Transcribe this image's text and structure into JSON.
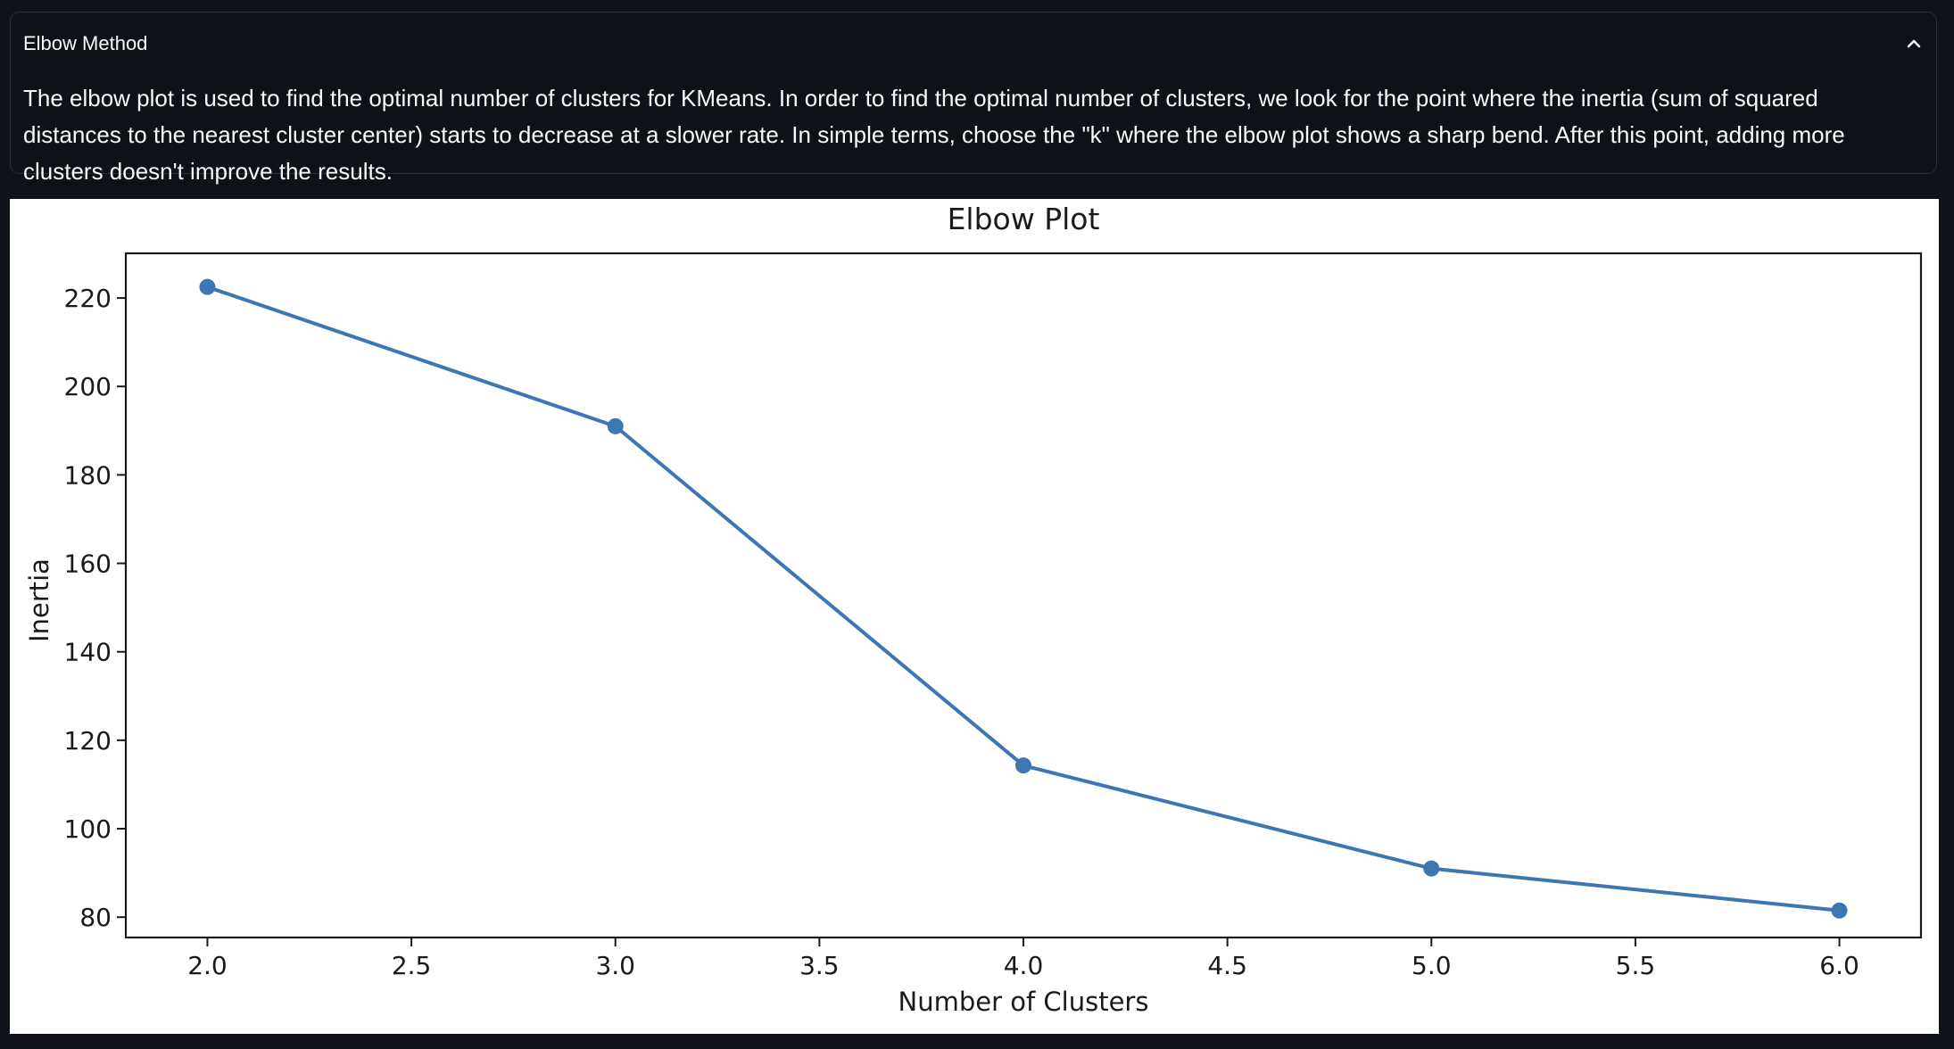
{
  "expander": {
    "title": "Elbow Method",
    "chevron_icon": "chevron-up-icon",
    "body": "The elbow plot is used to find the optimal number of clusters for KMeans. In order to find the optimal number of clusters, we look for the point where the inertia (sum of squared distances to the nearest cluster center) starts to decrease at a slower rate. In simple terms, choose the \"k\" where the elbow plot shows a sharp bend. After this point, adding more clusters doesn't improve the results."
  },
  "chart_data": {
    "type": "line",
    "title": "Elbow Plot",
    "xlabel": "Number of Clusters",
    "ylabel": "Inertia",
    "x": [
      2,
      3,
      4,
      5,
      6
    ],
    "values": [
      222.5,
      191,
      114.3,
      91,
      81.5
    ],
    "xticks": [
      "2.0",
      "2.5",
      "3.0",
      "3.5",
      "4.0",
      "4.5",
      "5.0",
      "5.5",
      "6.0"
    ],
    "yticks": [
      "80",
      "100",
      "120",
      "140",
      "160",
      "180",
      "200",
      "220"
    ],
    "xlim": [
      1.8,
      6.2
    ],
    "ylim": [
      75.4,
      230.1
    ],
    "grid": false,
    "marker": "circle",
    "line_color": "#3d76b3"
  }
}
